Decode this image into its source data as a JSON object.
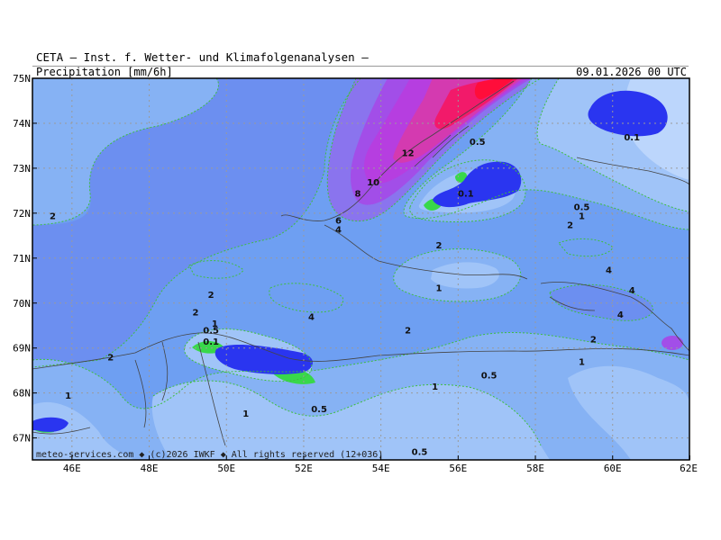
{
  "header": {
    "title": "CETA — Inst. f. Wetter- und Klimafolgenanalysen —",
    "subtitle": "Precipitation [mm/6h]",
    "valid_time": "09.01.2026 00 UTC"
  },
  "footer": {
    "credit": "meteo-services.com ◆ (c)2026 IWKF ◆ All rights reserved (12+036)"
  },
  "axes": {
    "lat_labels": [
      "75N",
      "74N",
      "73N",
      "72N",
      "71N",
      "70N",
      "69N",
      "68N",
      "67N"
    ],
    "lon_labels": [
      "46E",
      "48E",
      "50E",
      "52E",
      "54E",
      "56E",
      "58E",
      "60E",
      "62E"
    ]
  },
  "contour_labels": [
    {
      "text": "2",
      "lon": 45.5,
      "lat": 71.95
    },
    {
      "text": "2",
      "lon": 47.0,
      "lat": 68.8
    },
    {
      "text": "1",
      "lon": 45.9,
      "lat": 67.95
    },
    {
      "text": "2",
      "lon": 49.6,
      "lat": 70.2
    },
    {
      "text": "2",
      "lon": 49.2,
      "lat": 69.8
    },
    {
      "text": "1",
      "lon": 49.7,
      "lat": 69.55
    },
    {
      "text": "0.5",
      "lon": 49.6,
      "lat": 69.4
    },
    {
      "text": "0.1",
      "lon": 49.6,
      "lat": 69.15
    },
    {
      "text": "1",
      "lon": 50.5,
      "lat": 67.55
    },
    {
      "text": "4",
      "lon": 52.2,
      "lat": 69.7
    },
    {
      "text": "0.5",
      "lon": 52.4,
      "lat": 67.65
    },
    {
      "text": "2",
      "lon": 54.7,
      "lat": 69.4
    },
    {
      "text": "1",
      "lon": 55.4,
      "lat": 68.15
    },
    {
      "text": "0.5",
      "lon": 56.8,
      "lat": 68.4
    },
    {
      "text": "0.5",
      "lon": 55.0,
      "lat": 66.7
    },
    {
      "text": "6",
      "lon": 52.9,
      "lat": 71.85
    },
    {
      "text": "4",
      "lon": 52.9,
      "lat": 71.65
    },
    {
      "text": "8",
      "lon": 53.4,
      "lat": 72.45
    },
    {
      "text": "10",
      "lon": 53.8,
      "lat": 72.7
    },
    {
      "text": "12",
      "lon": 54.7,
      "lat": 73.35
    },
    {
      "text": "0.5",
      "lon": 56.5,
      "lat": 73.6
    },
    {
      "text": "0.1",
      "lon": 56.2,
      "lat": 72.45
    },
    {
      "text": "2",
      "lon": 55.5,
      "lat": 71.3
    },
    {
      "text": "1",
      "lon": 55.5,
      "lat": 70.35
    },
    {
      "text": "0.1",
      "lon": 60.5,
      "lat": 73.7
    },
    {
      "text": "0.5",
      "lon": 59.2,
      "lat": 72.15
    },
    {
      "text": "1",
      "lon": 59.2,
      "lat": 71.95
    },
    {
      "text": "2",
      "lon": 58.9,
      "lat": 71.75
    },
    {
      "text": "4",
      "lon": 59.9,
      "lat": 70.75
    },
    {
      "text": "4",
      "lon": 60.5,
      "lat": 70.3
    },
    {
      "text": "4",
      "lon": 60.2,
      "lat": 69.75
    },
    {
      "text": "2",
      "lon": 59.5,
      "lat": 69.2
    },
    {
      "text": "1",
      "lon": 59.2,
      "lat": 68.7
    }
  ],
  "colors": {
    "lt_0_1": "#d6e6ff",
    "ge_0_1": "#bcd6fc",
    "ge_0_5": "#a0c4f8",
    "ge_1": "#86b2f4",
    "ge_2": "#6e9ff2",
    "ge_4": "#6c8ff0",
    "ge_6": "#8a74ee",
    "ge_8": "#a24ee8",
    "ge_10": "#b63ee0",
    "ge_12": "#d43ab0",
    "ge_16": "#f21a6a",
    "ge_20": "#ff0d3a",
    "blue_core": "#2a35f0",
    "green_edge": "#38d84a",
    "contour_line": "#3fbf3f",
    "grid": "#9a9a9a",
    "coast": "#444444"
  }
}
